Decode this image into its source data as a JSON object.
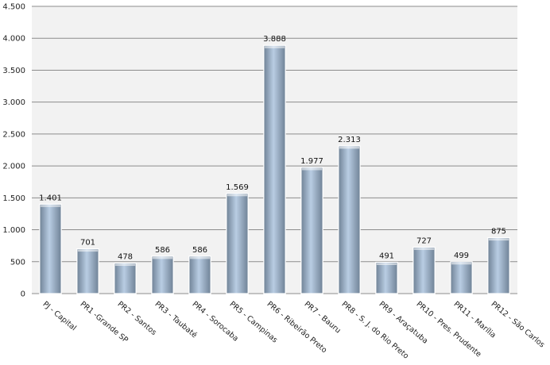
{
  "chart_data": {
    "type": "bar",
    "title": "",
    "xlabel": "",
    "ylabel": "",
    "categories": [
      "PJ - Capital",
      "PR1 -Grande SP",
      "PR2 - Santos",
      "PR3 - Taubaté",
      "PR4 - Sorocaba",
      "PR5 - Campinas",
      "PR6 - Ribeirão Preto",
      "PR7 - Bauru",
      "PR8 - S. J. do Rio Preto",
      "PR9 - Araçatuba",
      "PR10 - Pres. Prudente",
      "PR11 - Marília",
      "PR12 - São Carlos"
    ],
    "values": [
      1401,
      701,
      478,
      586,
      586,
      1569,
      3888,
      1977,
      2313,
      491,
      727,
      499,
      875
    ],
    "data_labels": [
      "1.401",
      "701",
      "478",
      "586",
      "586",
      "1.569",
      "3.888",
      "1.977",
      "2.313",
      "491",
      "727",
      "499",
      "875"
    ],
    "ylim": [
      0,
      4500
    ],
    "yticks": [
      0,
      500,
      1000,
      1500,
      2000,
      2500,
      3000,
      3500,
      4000,
      4500
    ],
    "ytick_labels": [
      "0",
      "500",
      "1.000",
      "1.500",
      "2.000",
      "2.500",
      "3.000",
      "3.500",
      "4.000",
      "4.500"
    ],
    "grid": true,
    "legend": "none",
    "colors": {
      "plot_background": "#f2f2f2",
      "gridline": "#8c8c8c",
      "bar_light": "#b9cde3",
      "bar_dark": "#6f8296",
      "bar_outline": "#ffffff"
    }
  }
}
